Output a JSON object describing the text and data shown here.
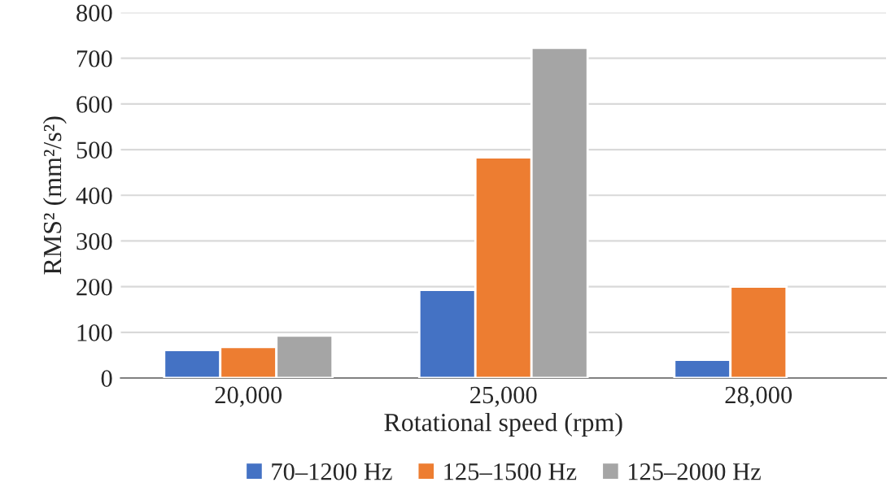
{
  "chart_data": {
    "type": "bar",
    "xlabel": "Rotational speed (rpm)",
    "ylabel": "RMS² (mm²/s²)",
    "categories": [
      "20,000",
      "25,000",
      "28,000"
    ],
    "series": [
      {
        "name": "70–1200 Hz",
        "color": "#4472c4",
        "values": [
          61,
          193,
          40
        ]
      },
      {
        "name": "125–1500 Hz",
        "color": "#ed7d31",
        "values": [
          68,
          483,
          200
        ]
      },
      {
        "name": "125–2000 Hz",
        "color": "#a5a5a5",
        "values": [
          93,
          723,
          null
        ]
      }
    ],
    "ylim": [
      0,
      800
    ],
    "yticks": [
      0,
      100,
      200,
      300,
      400,
      500,
      600,
      700,
      800
    ],
    "grid": "y",
    "legend": "bottom"
  }
}
